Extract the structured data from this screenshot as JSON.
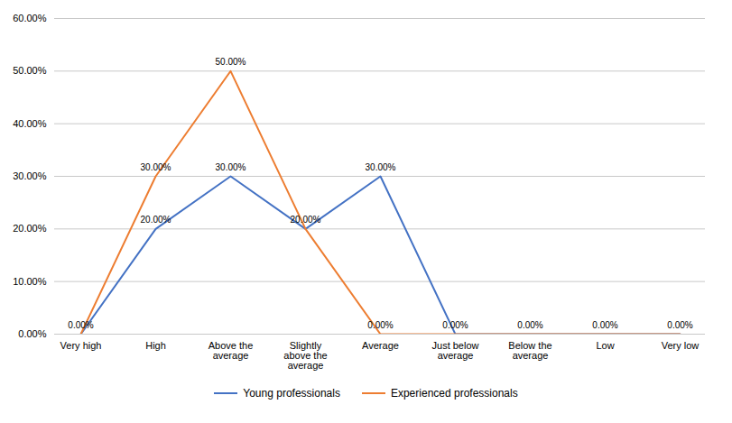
{
  "chart_data": {
    "type": "line",
    "categories": [
      "Very high",
      "High",
      "Above the\naverage",
      "Slightly\nabove the\naverage",
      "Average",
      "Just below\naverage",
      "Below the\naverage",
      "Low",
      "Very low"
    ],
    "series": [
      {
        "name": "Young professionals",
        "color": "#4472C4",
        "values": [
          0.0,
          20.0,
          30.0,
          20.0,
          30.0,
          0.0,
          0.0,
          0.0,
          0.0
        ],
        "value_labels": [
          "0.00%",
          "20.00%",
          "30.00%",
          "20.00%",
          "30.00%",
          "0.00%",
          "0.00%",
          "0.00%",
          "0.00%"
        ]
      },
      {
        "name": "Experienced professionals",
        "color": "#ED7D31",
        "values": [
          0.0,
          30.0,
          50.0,
          20.0,
          0.0,
          0.0,
          0.0,
          0.0,
          0.0
        ],
        "value_labels": [
          "0.00%",
          "30.00%",
          "50.00%",
          "20.00%",
          "0.00%",
          "0.00%",
          "0.00%",
          "0.00%",
          "0.00%"
        ]
      }
    ],
    "ylim": [
      0,
      60
    ],
    "yticks": [
      {
        "value": 0,
        "label": "0.00%"
      },
      {
        "value": 10,
        "label": "10.00%"
      },
      {
        "value": 20,
        "label": "20.00%"
      },
      {
        "value": 30,
        "label": "30.00%"
      },
      {
        "value": 40,
        "label": "40.00%"
      },
      {
        "value": 50,
        "label": "50.00%"
      },
      {
        "value": 60,
        "label": "60.00%"
      }
    ],
    "grid": true,
    "legend": "bottom",
    "data_labels": true
  }
}
